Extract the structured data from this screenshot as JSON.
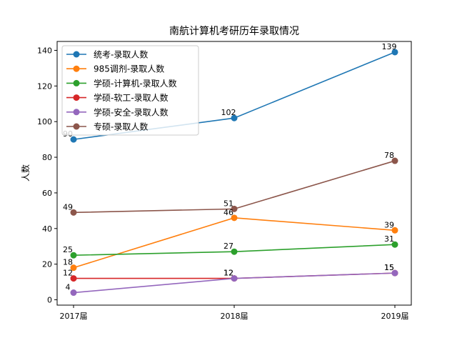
{
  "chart_data": {
    "type": "line",
    "title": "南航计算机考研历年录取情况",
    "xlabel": "",
    "ylabel": "人数",
    "categories": [
      "2017届",
      "2018届",
      "2019届"
    ],
    "ylim": [
      -3,
      145
    ],
    "yticks": [
      0,
      20,
      40,
      60,
      80,
      100,
      120,
      140
    ],
    "grid": false,
    "legend_position": "top-left",
    "series": [
      {
        "name": "统考-录取人数",
        "color": "#1f77b4",
        "values": [
          90,
          102,
          139
        ]
      },
      {
        "name": "985调剂-录取人数",
        "color": "#ff7f0e",
        "values": [
          18,
          46,
          39
        ]
      },
      {
        "name": "学硕-计算机-录取人数",
        "color": "#2ca02c",
        "values": [
          25,
          27,
          31
        ]
      },
      {
        "name": "学硕-软工-录取人数",
        "color": "#d62728",
        "values": [
          12,
          12,
          15
        ]
      },
      {
        "name": "学硕-安全-录取人数",
        "color": "#9467bd",
        "values": [
          4,
          12,
          15
        ]
      },
      {
        "name": "专硕-录取人数",
        "color": "#8c564b",
        "values": [
          49,
          51,
          78
        ]
      }
    ]
  }
}
